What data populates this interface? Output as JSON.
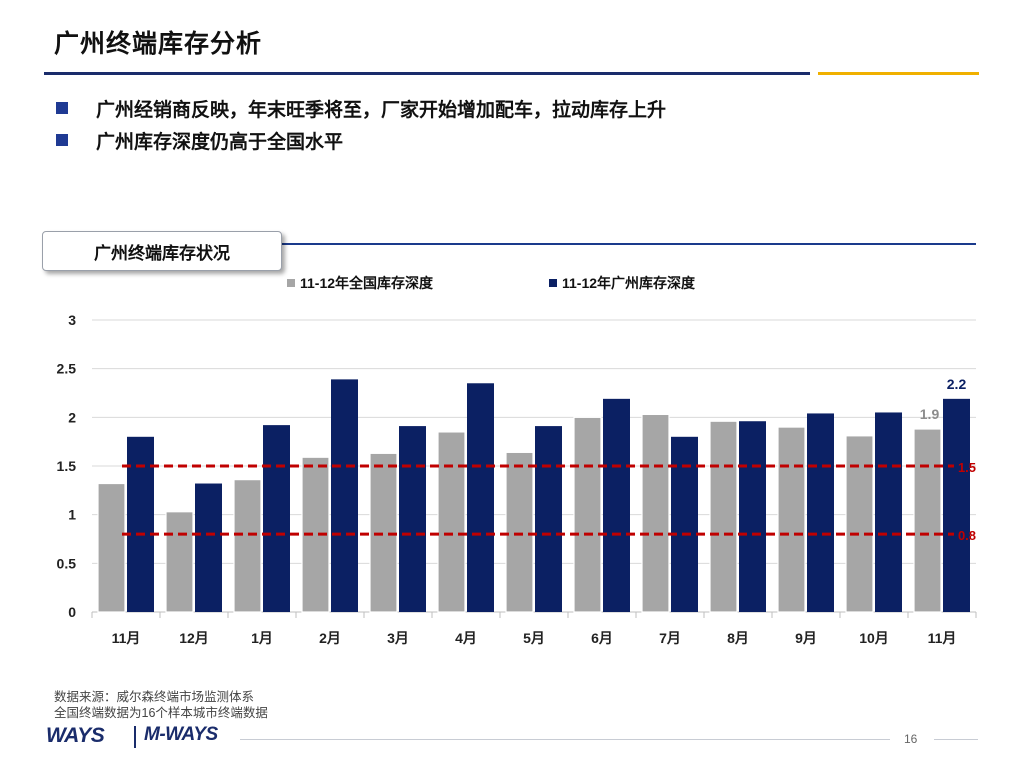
{
  "slide": {
    "title": "广州终端库存分析",
    "bullets": [
      "广州经销商反映，年末旺季将至，厂家开始增加配车，拉动库存上升",
      "广州库存深度仍高于全国水平"
    ],
    "section_label": "广州终端库存状况",
    "footer_lines": [
      "数据来源：威尔森终端市场监测体系",
      "全国终端数据为16个样本城市终端数据"
    ],
    "logo_left": "WAYS",
    "logo_right": "M-WAYS",
    "page_number": "16"
  },
  "colors": {
    "national": "#a6a6a6",
    "guangzhou": "#0b2063",
    "refline": "#c00000",
    "accent_blue": "#1a2c6b",
    "accent_gold": "#f0b000"
  },
  "chart_data": {
    "type": "bar",
    "categories": [
      "11月",
      "12月",
      "1月",
      "2月",
      "3月",
      "4月",
      "5月",
      "6月",
      "7月",
      "8月",
      "9月",
      "10月",
      "11月"
    ],
    "series": [
      {
        "name": "11-12年全国库存深度",
        "values": [
          1.32,
          1.03,
          1.36,
          1.59,
          1.63,
          1.85,
          1.64,
          2.0,
          2.03,
          1.96,
          1.9,
          1.81,
          1.88
        ]
      },
      {
        "name": "11-12年广州库存深度",
        "values": [
          1.8,
          1.32,
          1.92,
          2.39,
          1.91,
          2.35,
          1.91,
          2.19,
          1.8,
          1.96,
          2.04,
          2.05,
          2.19
        ]
      }
    ],
    "ylim": [
      0,
      3
    ],
    "yticks": [
      0,
      0.5,
      1,
      1.5,
      2,
      2.5,
      3
    ],
    "ytick_labels": [
      "0",
      "0.5",
      "1",
      "1.5",
      "2",
      "2.5",
      "3"
    ],
    "grid": true,
    "legend_position": "top",
    "reference_lines": [
      {
        "value": 1.5,
        "label": "1.5"
      },
      {
        "value": 0.8,
        "label": "0.8"
      }
    ],
    "annotations": [
      {
        "series": 1,
        "index": 12,
        "label": "2.2"
      },
      {
        "series": 0,
        "index": 12,
        "label": "1.9"
      }
    ]
  }
}
